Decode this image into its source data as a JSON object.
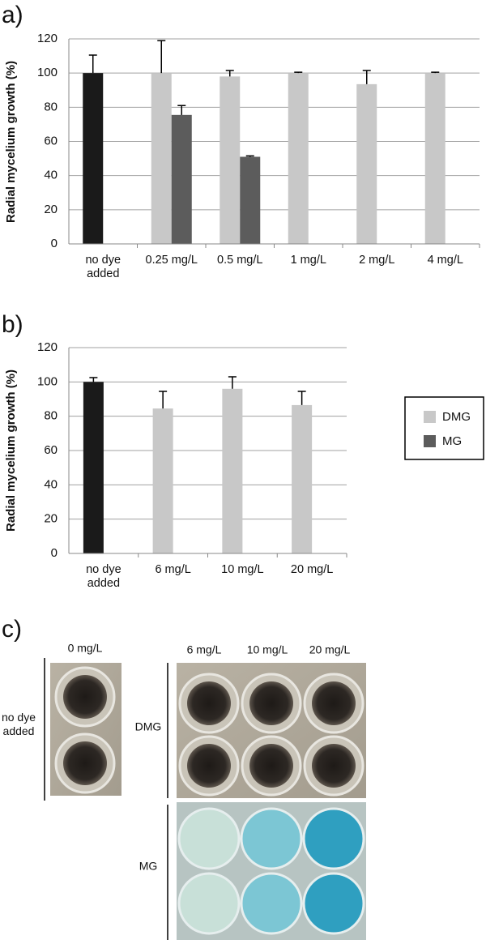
{
  "chart_data": [
    {
      "type": "bar",
      "panel": "a)",
      "ylabel": "Radial mycelium growth (%)",
      "categories": [
        "no dye added",
        "0.25 mg/L",
        "0.5 mg/L",
        "1 mg/L",
        "2 mg/L",
        "4 mg/L"
      ],
      "series": [
        {
          "color": "#1a1a1a",
          "values": [
            100,
            null,
            null,
            null,
            null,
            null
          ],
          "errors": [
            10.5,
            null,
            null,
            null,
            null,
            null
          ]
        },
        {
          "name": "DMG",
          "color": "#c8c8c8",
          "values": [
            null,
            100,
            98,
            100,
            93.5,
            100
          ],
          "errors": [
            null,
            19,
            3.5,
            0.5,
            8,
            0.5
          ]
        },
        {
          "name": "MG",
          "color": "#5c5c5c",
          "values": [
            null,
            75.5,
            51,
            null,
            null,
            null
          ],
          "errors": [
            null,
            5.5,
            0.5,
            null,
            null,
            null
          ]
        }
      ],
      "ylim": [
        0,
        120
      ],
      "yticks": [
        0,
        20,
        40,
        60,
        80,
        100,
        120
      ],
      "grid": true
    },
    {
      "type": "bar",
      "panel": "b)",
      "ylabel": "Radial mycelium growth (%)",
      "categories": [
        "no dye added",
        "6 mg/L",
        "10 mg/L",
        "20 mg/L"
      ],
      "series": [
        {
          "color": "#1a1a1a",
          "values": [
            100,
            null,
            null,
            null
          ],
          "errors": [
            2.5,
            null,
            null,
            null
          ]
        },
        {
          "name": "DMG",
          "color": "#c8c8c8",
          "values": [
            null,
            84.5,
            96,
            86.5
          ],
          "errors": [
            null,
            10,
            7,
            8
          ]
        },
        {
          "name": "MG",
          "color": "#5c5c5c",
          "values": [
            null,
            null,
            null,
            null
          ],
          "errors": [
            null,
            null,
            null,
            null
          ]
        }
      ],
      "ylim": [
        0,
        120
      ],
      "yticks": [
        0,
        20,
        40,
        60,
        80,
        100,
        120
      ],
      "grid": true,
      "legend": "right"
    }
  ],
  "photos": {
    "panel": "c)",
    "concentrations": [
      "0 mg/L",
      "6 mg/L",
      "10 mg/L",
      "20 mg/L"
    ],
    "rows": [
      "no dye added",
      "DMG",
      "MG"
    ]
  }
}
